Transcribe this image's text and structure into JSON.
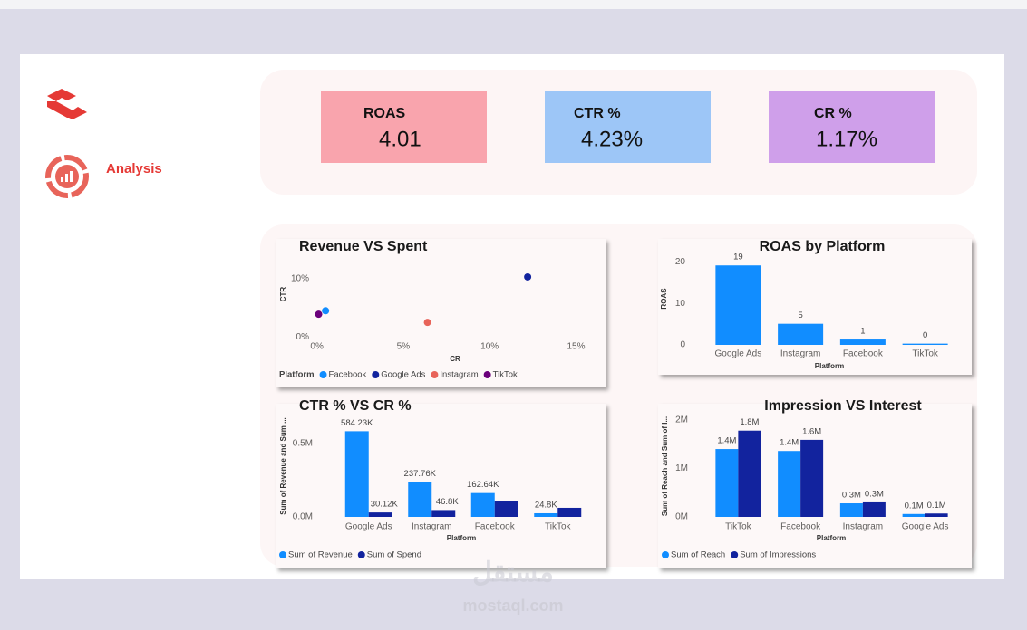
{
  "sidebar": {
    "nav_label": "Analysis"
  },
  "kpis": [
    {
      "label": "ROAS",
      "value": "4.01",
      "color": "#f9a4ad"
    },
    {
      "label": "CTR %",
      "value": "4.23%",
      "color": "#9dc6f7"
    },
    {
      "label": "CR %",
      "value": "1.17%",
      "color": "#cf9fea"
    }
  ],
  "chart_data": [
    {
      "type": "scatter",
      "title": "Revenue VS Spent",
      "x_label": "CR",
      "y_label": "CTR",
      "legend_title": "Platform",
      "xlim": [
        -0.4,
        15.5
      ],
      "xticks": [
        {
          "value": 0,
          "label": "0%"
        },
        {
          "value": 5,
          "label": "5%"
        },
        {
          "value": 10,
          "label": "10%"
        },
        {
          "value": 15,
          "label": "15%"
        }
      ],
      "ylim": [
        -1.2,
        12
      ],
      "yticks": [
        {
          "value": 0,
          "label": "0%"
        },
        {
          "value": 10,
          "label": "10%"
        }
      ],
      "series": [
        {
          "name": "Facebook",
          "color": "#118dff",
          "x": [
            0.5
          ],
          "values": [
            4.5
          ]
        },
        {
          "name": "Google Ads",
          "color": "#12239e",
          "x": [
            12.2
          ],
          "values": [
            10.3
          ]
        },
        {
          "name": "Instagram",
          "color": "#e8645a",
          "x": [
            6.4
          ],
          "values": [
            2.5
          ]
        },
        {
          "name": "TikTok",
          "color": "#6b007b",
          "x": [
            0.1
          ],
          "values": [
            3.9
          ]
        }
      ]
    },
    {
      "type": "bar",
      "title": "ROAS by Platform",
      "x_label": "Platform",
      "y_label": "ROAS",
      "categories": [
        "Google Ads",
        "Instagram",
        "Facebook",
        "TikTok"
      ],
      "ylim": [
        0,
        21
      ],
      "yticks": [
        0,
        10,
        20
      ],
      "series": [
        {
          "name": "ROAS",
          "color": "#118dff",
          "values": [
            19.2,
            5.1,
            1.3,
            0.3
          ],
          "value_labels": [
            "19",
            "5",
            "1",
            "0"
          ]
        }
      ]
    },
    {
      "type": "grouped_bar",
      "title": "CTR % VS CR %",
      "x_label": "Platform",
      "y_label": "Sum of Revenue and Sum ...",
      "categories": [
        "Google Ads",
        "Instagram",
        "Facebook",
        "TikTok"
      ],
      "ylim": [
        0,
        620000
      ],
      "yticks": [
        {
          "value": 0,
          "label": "0.0M"
        },
        {
          "value": 500000,
          "label": "0.5M"
        }
      ],
      "series": [
        {
          "name": "Sum of Revenue",
          "color": "#118dff",
          "values": [
            584230,
            237760,
            162640,
            24800
          ],
          "value_labels": [
            "584.23K",
            "237.76K",
            "162.64K",
            "24.8K"
          ]
        },
        {
          "name": "Sum of Spend",
          "color": "#12239e",
          "values": [
            30120,
            46800,
            111000,
            62000
          ],
          "value_labels": [
            "30.12K",
            "46.8K",
            null,
            null
          ]
        }
      ]
    },
    {
      "type": "grouped_bar",
      "title": "Impression VS Interest",
      "x_label": "Platform",
      "y_label": "Sum of Reach and Sum of I...",
      "categories": [
        "TikTok",
        "Facebook",
        "Instagram",
        "Google Ads"
      ],
      "ylim": [
        0,
        2100000
      ],
      "yticks": [
        {
          "value": 0,
          "label": "0M"
        },
        {
          "value": 1000000,
          "label": "1M"
        },
        {
          "value": 2000000,
          "label": "2M"
        }
      ],
      "series": [
        {
          "name": "Sum of Reach",
          "color": "#118dff",
          "values": [
            1400000,
            1360000,
            280000,
            60000
          ],
          "value_labels": [
            "1.4M",
            "1.4M",
            "0.3M",
            "0.1M"
          ]
        },
        {
          "name": "Sum of Impressions",
          "color": "#12239e",
          "values": [
            1780000,
            1590000,
            300000,
            70000
          ],
          "value_labels": [
            "1.8M",
            "1.6M",
            "0.3M",
            "0.1M"
          ]
        }
      ]
    }
  ],
  "watermark": {
    "arabic": "مستقل",
    "latin": "mostaql.com"
  }
}
